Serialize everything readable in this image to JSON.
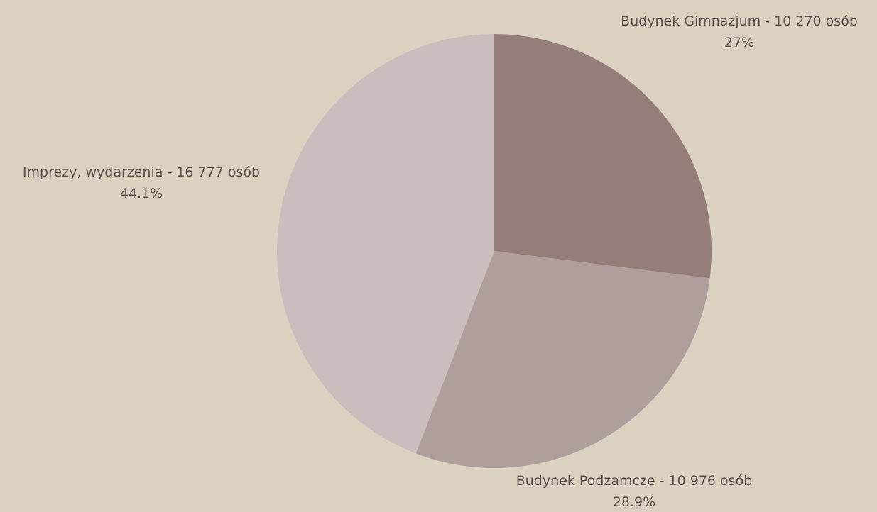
{
  "chart_data": {
    "type": "pie",
    "title": "",
    "slices": [
      {
        "label": "Budynek Gimnazjum - 10 270 osób",
        "pct_label": "27%",
        "value": 10270,
        "percent": 27.0,
        "color": "#957e7a"
      },
      {
        "label": "Budynek Podzamcze - 10 976 osób",
        "pct_label": "28.9%",
        "value": 10976,
        "percent": 28.9,
        "color": "#b09e9d"
      },
      {
        "label": "Imprezy, wydarzenia - 16 777 osób",
        "pct_label": "44.1%",
        "value": 16777,
        "percent": 44.1,
        "color": "#cbbdbe"
      }
    ],
    "start_angle_deg": 0,
    "direction": "clockwise",
    "legend": "none"
  },
  "colors": {
    "background": "#dbd1c0",
    "label_text": "#5c4f4b"
  }
}
